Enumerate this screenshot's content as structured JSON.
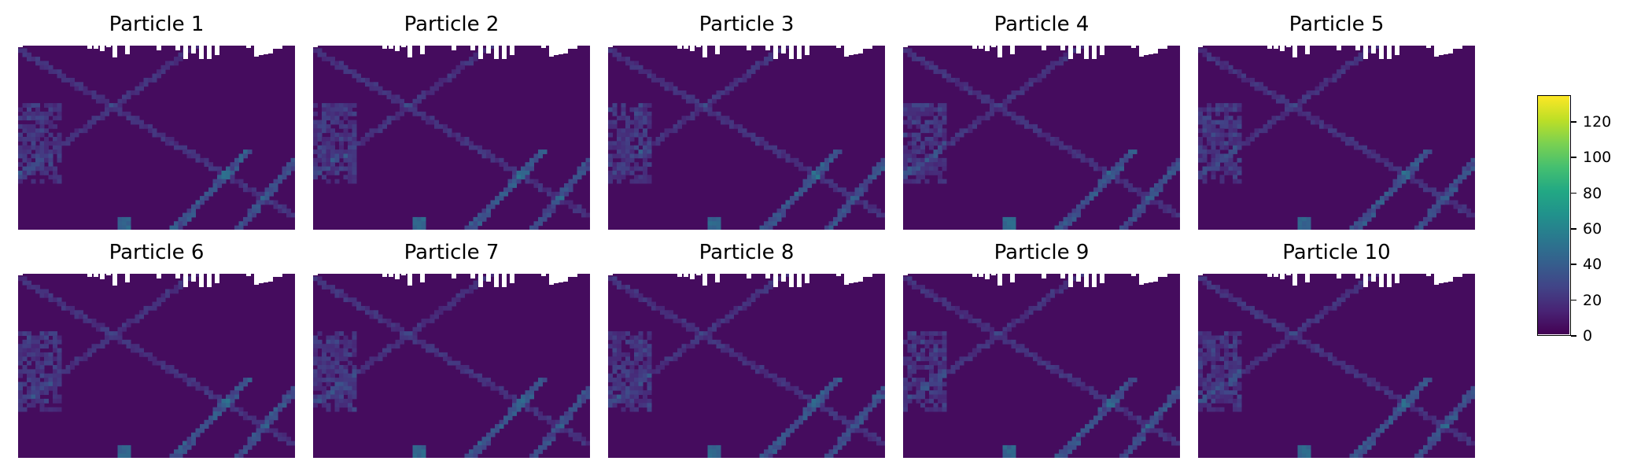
{
  "chart_data": {
    "type": "heatmap",
    "panels": [
      {
        "title": "Particle 1"
      },
      {
        "title": "Particle 2"
      },
      {
        "title": "Particle 3"
      },
      {
        "title": "Particle 4"
      },
      {
        "title": "Particle 5"
      },
      {
        "title": "Particle 6"
      },
      {
        "title": "Particle 7"
      },
      {
        "title": "Particle 8"
      },
      {
        "title": "Particle 9"
      },
      {
        "title": "Particle 10"
      }
    ],
    "layout": {
      "rows": 2,
      "cols": 5
    },
    "colormap": "viridis",
    "colorbar": {
      "range": [
        0,
        135
      ],
      "ticks": [
        0,
        20,
        40,
        60,
        80,
        100,
        120
      ],
      "tick_labels": [
        "0",
        "20",
        "40",
        "60",
        "80",
        "100",
        "120"
      ]
    },
    "axes_visible": false,
    "masked_color": "#ffffff"
  }
}
